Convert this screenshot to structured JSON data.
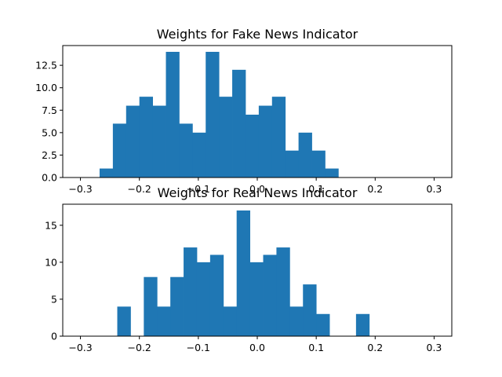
{
  "colors": {
    "bar": "#1f77b4",
    "axis": "#000000",
    "background": "#ffffff"
  },
  "chart_data": [
    {
      "type": "bar",
      "title": "Weights for Fake News Indicator",
      "xlabel": "",
      "ylabel": "",
      "xlim": [
        -0.33,
        0.33
      ],
      "ylim": [
        0,
        14.7
      ],
      "bin_width": 0.0225,
      "bars": [
        {
          "x0": -0.2675,
          "value": 1
        },
        {
          "x0": -0.245,
          "value": 6
        },
        {
          "x0": -0.2225,
          "value": 8
        },
        {
          "x0": -0.2,
          "value": 9
        },
        {
          "x0": -0.1775,
          "value": 8
        },
        {
          "x0": -0.155,
          "value": 14
        },
        {
          "x0": -0.1325,
          "value": 6
        },
        {
          "x0": -0.11,
          "value": 5
        },
        {
          "x0": -0.0875,
          "value": 14
        },
        {
          "x0": -0.065,
          "value": 9
        },
        {
          "x0": -0.0425,
          "value": 12
        },
        {
          "x0": -0.02,
          "value": 7
        },
        {
          "x0": 0.0025,
          "value": 8
        },
        {
          "x0": 0.025,
          "value": 9
        },
        {
          "x0": 0.0475,
          "value": 3
        },
        {
          "x0": 0.07,
          "value": 5
        },
        {
          "x0": 0.0925,
          "value": 3
        },
        {
          "x0": 0.115,
          "value": 1
        }
      ],
      "x_ticks": [
        {
          "value": -0.3,
          "label": "−0.3"
        },
        {
          "value": -0.2,
          "label": "−0.2"
        },
        {
          "value": -0.1,
          "label": "−0.1"
        },
        {
          "value": 0.0,
          "label": "0.0"
        },
        {
          "value": 0.1,
          "label": "0.1"
        },
        {
          "value": 0.2,
          "label": "0.2"
        },
        {
          "value": 0.3,
          "label": "0.3"
        }
      ],
      "y_ticks": [
        {
          "value": 0,
          "label": "0.0"
        },
        {
          "value": 2.5,
          "label": "2.5"
        },
        {
          "value": 5,
          "label": "5.0"
        },
        {
          "value": 7.5,
          "label": "7.5"
        },
        {
          "value": 10,
          "label": "10.0"
        },
        {
          "value": 12.5,
          "label": "12.5"
        }
      ]
    },
    {
      "type": "bar",
      "title": "Weights for Real News Indicator",
      "xlabel": "",
      "ylabel": "",
      "xlim": [
        -0.33,
        0.33
      ],
      "ylim": [
        0,
        17.85
      ],
      "bin_width": 0.0225,
      "bars": [
        {
          "x0": -0.2375,
          "value": 4
        },
        {
          "x0": -0.215,
          "value": 0
        },
        {
          "x0": -0.1925,
          "value": 8
        },
        {
          "x0": -0.17,
          "value": 4
        },
        {
          "x0": -0.1475,
          "value": 8
        },
        {
          "x0": -0.125,
          "value": 12
        },
        {
          "x0": -0.1025,
          "value": 10
        },
        {
          "x0": -0.08,
          "value": 11
        },
        {
          "x0": -0.0575,
          "value": 4
        },
        {
          "x0": -0.035,
          "value": 17
        },
        {
          "x0": -0.0125,
          "value": 10
        },
        {
          "x0": 0.01,
          "value": 11
        },
        {
          "x0": 0.0325,
          "value": 12
        },
        {
          "x0": 0.055,
          "value": 4
        },
        {
          "x0": 0.0775,
          "value": 7
        },
        {
          "x0": 0.1,
          "value": 3
        },
        {
          "x0": 0.1225,
          "value": 0
        },
        {
          "x0": 0.145,
          "value": 0
        },
        {
          "x0": 0.1675,
          "value": 3
        }
      ],
      "x_ticks": [
        {
          "value": -0.3,
          "label": "−0.3"
        },
        {
          "value": -0.2,
          "label": "−0.2"
        },
        {
          "value": -0.1,
          "label": "−0.1"
        },
        {
          "value": 0.0,
          "label": "0.0"
        },
        {
          "value": 0.1,
          "label": "0.1"
        },
        {
          "value": 0.2,
          "label": "0.2"
        },
        {
          "value": 0.3,
          "label": "0.3"
        }
      ],
      "y_ticks": [
        {
          "value": 0,
          "label": "0"
        },
        {
          "value": 5,
          "label": "5"
        },
        {
          "value": 10,
          "label": "10"
        },
        {
          "value": 15,
          "label": "15"
        }
      ]
    }
  ]
}
